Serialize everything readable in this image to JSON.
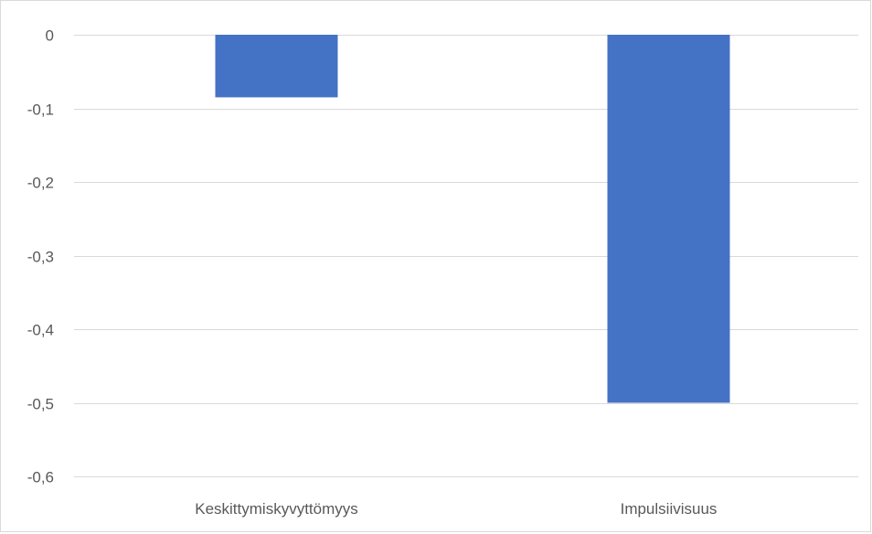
{
  "chart_data": {
    "type": "bar",
    "categories": [
      "Keskittymiskyvyttömyys",
      "Impulsiivisuus"
    ],
    "series": [
      {
        "values": [
          -0.085,
          -0.5
        ],
        "color": "#4472c4"
      }
    ],
    "ylim": [
      -0.6,
      0
    ],
    "yticks": [
      0,
      -0.1,
      -0.2,
      -0.3,
      -0.4,
      -0.5,
      -0.6
    ],
    "ytick_labels": [
      "0",
      "-0,1",
      "-0,2",
      "-0,3",
      "-0,4",
      "-0,5",
      "-0,6"
    ],
    "grid": true,
    "title": "",
    "xlabel": "",
    "ylabel": ""
  }
}
